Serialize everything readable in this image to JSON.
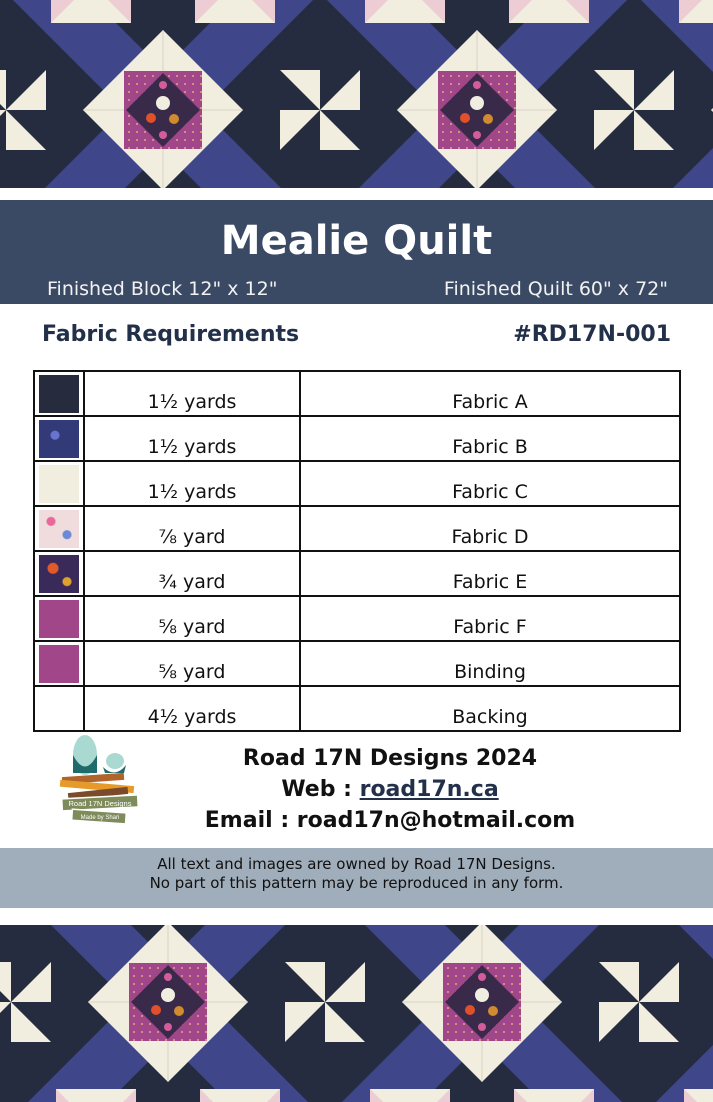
{
  "header": {
    "title": "Mealie Quilt",
    "finished_block": "Finished Block 12\" x 12\"",
    "finished_quilt": "Finished Quilt 60\" x 72\""
  },
  "section": {
    "heading": "Fabric Requirements",
    "pattern_number": "#RD17N-001"
  },
  "fabrics": [
    {
      "amount": "1½ yards",
      "name": "Fabric A",
      "color": "#262c3e"
    },
    {
      "amount": "1½ yards",
      "name": "Fabric B",
      "color": "#3d4486"
    },
    {
      "amount": "1½ yards",
      "name": "Fabric C",
      "color": "#f1eedf"
    },
    {
      "amount": "⅞ yard",
      "name": "Fabric D",
      "color": "#e8c6cf"
    },
    {
      "amount": "¾ yard",
      "name": "Fabric E",
      "color": "#6a3050"
    },
    {
      "amount": "⅝ yard",
      "name": "Fabric F",
      "color": "#a2468a"
    },
    {
      "amount": "⅝ yard",
      "name": "Binding",
      "color": "#a2468a"
    },
    {
      "amount": "4½ yards",
      "name": "Backing",
      "color": "#ffffff"
    }
  ],
  "contact": {
    "company": "Road 17N Designs 2024",
    "web_label": "Web :",
    "web_link": "road17n.ca",
    "email_label": "Email :",
    "email": "road17n@hotmail.com"
  },
  "logo": {
    "line1": "Road 17N Designs",
    "line2": "Made by Shari"
  },
  "footer": {
    "line1": "All text and images are owned by Road 17N Designs.",
    "line2": "No part of this pattern may be reproduced in any form."
  },
  "colors": {
    "banner": "#3b4a64",
    "footer": "#a0adba",
    "accent_text": "#23304a"
  }
}
